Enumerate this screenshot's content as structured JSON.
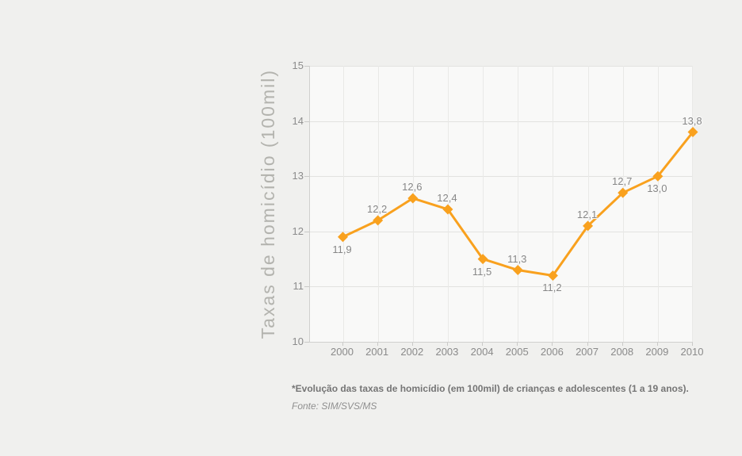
{
  "page": {
    "background_color": "#f0f0ee",
    "plot_background_color": "#f9f9f8"
  },
  "chart_data": {
    "type": "line",
    "title": "",
    "xlabel": "",
    "ylabel": "Taxas de homicídio (100mil)",
    "categories": [
      "2000",
      "2001",
      "2002",
      "2003",
      "2004",
      "2005",
      "2006",
      "2007",
      "2008",
      "2009",
      "2010"
    ],
    "series": [
      {
        "values": [
          11.9,
          12.2,
          12.6,
          12.4,
          11.5,
          11.3,
          11.2,
          12.1,
          12.7,
          13.0,
          13.8
        ],
        "point_labels": [
          "11,9",
          "12,2",
          "12,6",
          "12,4",
          "11,5",
          "11,3",
          "11,2",
          "12,1",
          "12,7",
          "13,0",
          "13,8"
        ],
        "label_positions": [
          "below",
          "above",
          "above",
          "above",
          "below",
          "above",
          "below",
          "above",
          "above",
          "below",
          "above"
        ]
      }
    ],
    "ylim": [
      10,
      15
    ],
    "y_ticks": [
      10,
      11,
      12,
      13,
      14,
      15
    ],
    "grid": "on",
    "legend": "none",
    "line_color": "#F9A11E",
    "marker": "diamond",
    "label_color": "#878787"
  },
  "caption": {
    "note": "*Evolução das taxas de homicídio (em 100mil) de crianças e adolescentes (1 a 19 anos).",
    "source": "Fonte: SIM/SVS/MS"
  }
}
